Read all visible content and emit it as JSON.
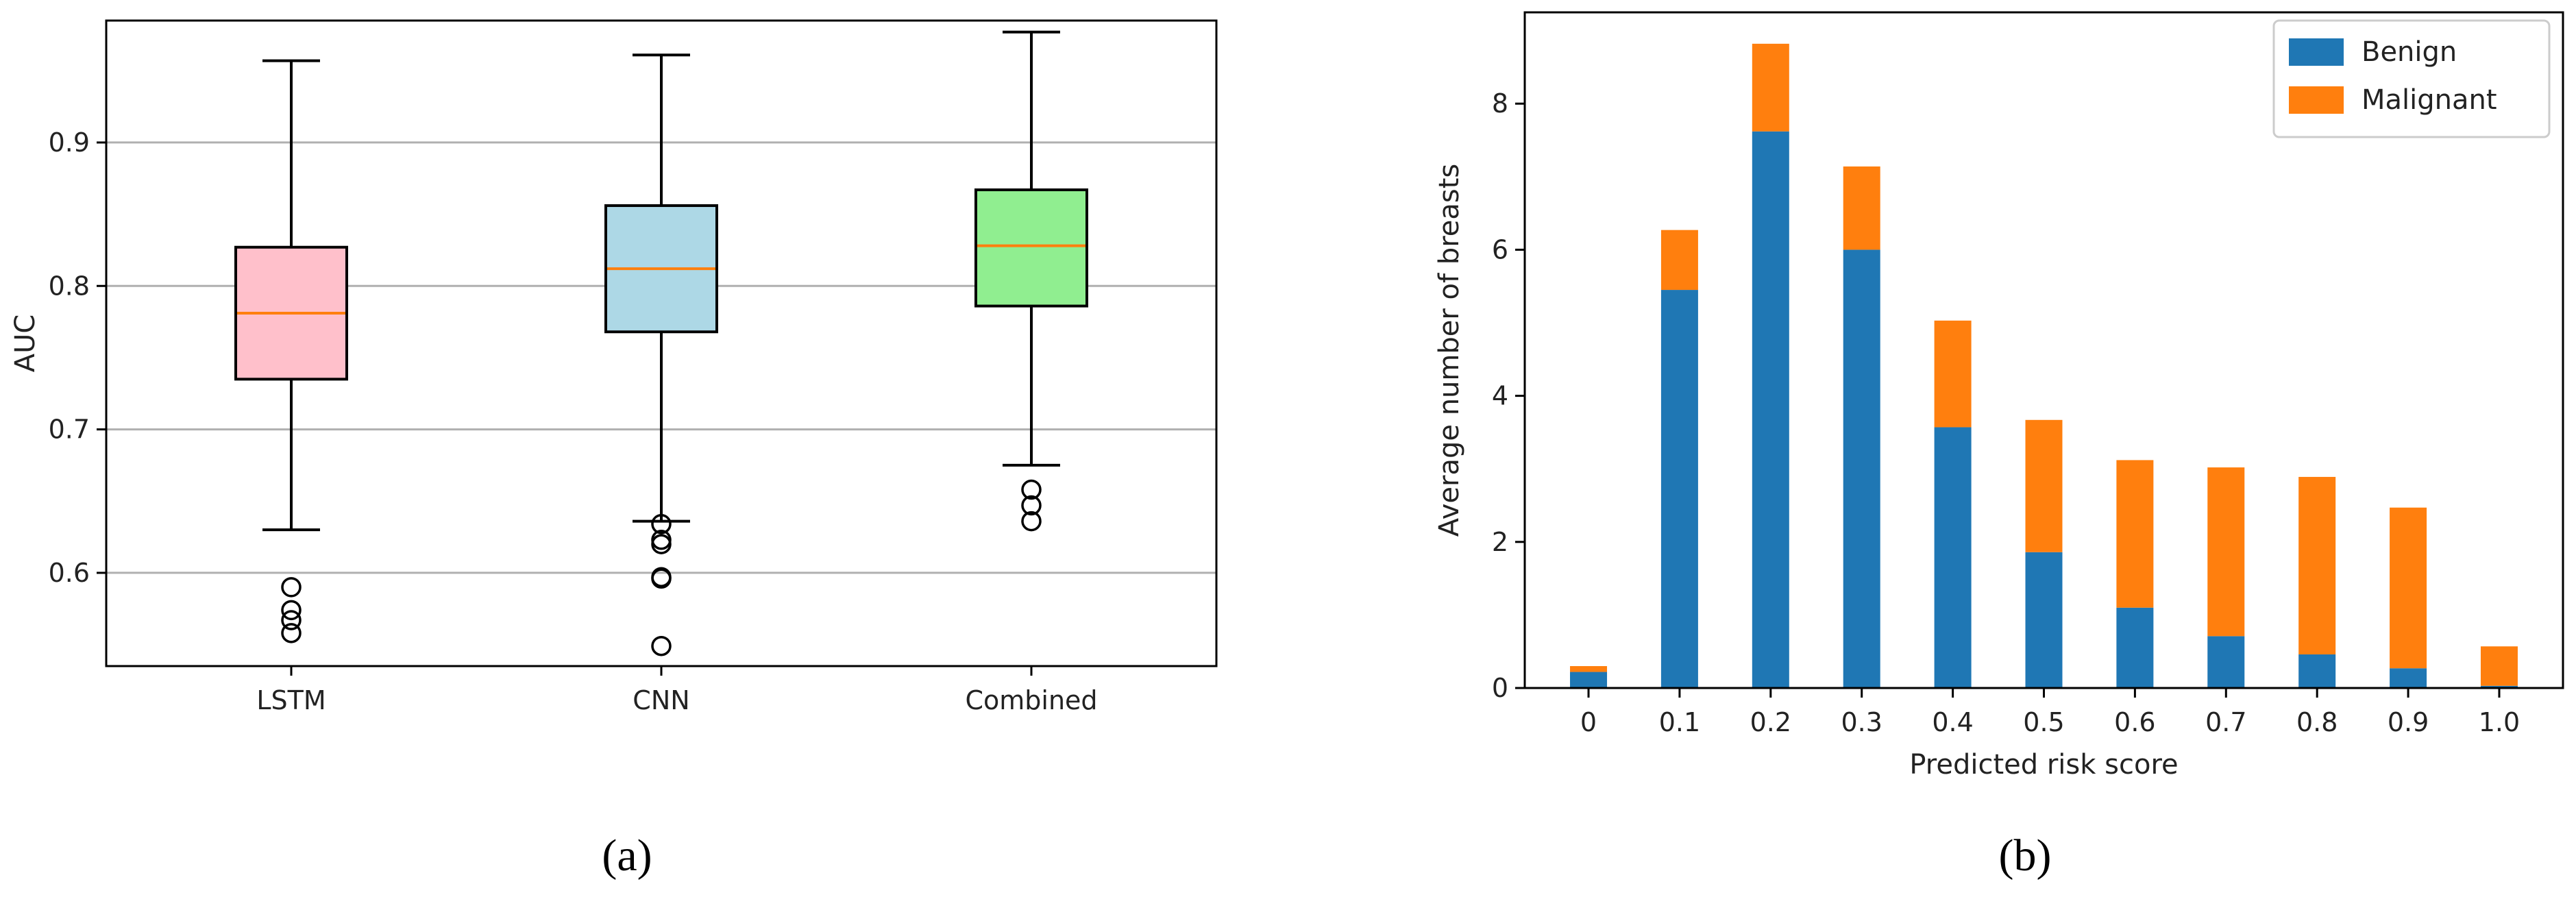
{
  "chart_data": [
    {
      "panel": "a",
      "type": "box",
      "title": "",
      "xlabel": "",
      "ylabel": "AUC",
      "ylim": [
        0.535,
        0.985
      ],
      "yticks": [
        0.6,
        0.7,
        0.8,
        0.9
      ],
      "ytick_labels": [
        "0.6",
        "0.7",
        "0.8",
        "0.9"
      ],
      "grid": "horizontal",
      "boxes": [
        {
          "name": "LSTM",
          "color": "#ffc0cb",
          "whisker_low": 0.63,
          "q1": 0.735,
          "median": 0.781,
          "q3": 0.827,
          "whisker_high": 0.957,
          "outliers": [
            0.59,
            0.574,
            0.567,
            0.558
          ]
        },
        {
          "name": "CNN",
          "color": "#add8e6",
          "whisker_low": 0.636,
          "q1": 0.768,
          "median": 0.812,
          "q3": 0.856,
          "whisker_high": 0.961,
          "outliers": [
            0.634,
            0.623,
            0.62,
            0.597,
            0.596,
            0.549
          ]
        },
        {
          "name": "Combined",
          "color": "#90ee90",
          "whisker_low": 0.675,
          "q1": 0.786,
          "median": 0.828,
          "q3": 0.867,
          "whisker_high": 0.977,
          "outliers": [
            0.658,
            0.647,
            0.636
          ]
        }
      ],
      "median_color": "#ff7f0e"
    },
    {
      "panel": "b",
      "type": "stacked-bar",
      "title": "",
      "xlabel": "Predicted risk score",
      "ylabel": "Average number of breasts",
      "ylim": [
        0,
        9.25
      ],
      "yticks": [
        0,
        2,
        4,
        6,
        8
      ],
      "ytick_labels": [
        "0",
        "2",
        "4",
        "6",
        "8"
      ],
      "categories": [
        "0",
        "0.1",
        "0.2",
        "0.3",
        "0.4",
        "0.5",
        "0.6",
        "0.7",
        "0.8",
        "0.9",
        "1.0"
      ],
      "series": [
        {
          "name": "Benign",
          "color": "#1f77b4",
          "values": [
            0.22,
            5.45,
            7.62,
            6.0,
            3.57,
            1.86,
            1.1,
            0.71,
            0.46,
            0.27,
            0.03
          ]
        },
        {
          "name": "Malignant",
          "color": "#ff7f0e",
          "values": [
            0.08,
            0.82,
            1.2,
            1.14,
            1.46,
            1.81,
            2.02,
            2.31,
            2.43,
            2.2,
            0.54
          ]
        }
      ],
      "legend_position": "top-right"
    }
  ],
  "panel_labels": {
    "a": "(a)",
    "b": "(b)"
  }
}
